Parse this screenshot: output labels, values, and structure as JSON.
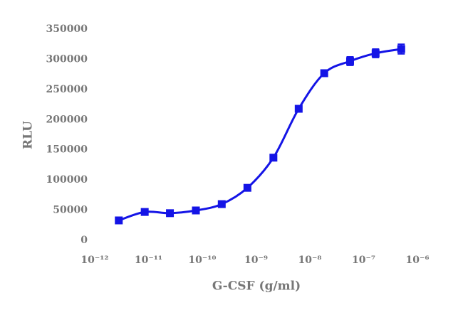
{
  "chart_data": {
    "type": "line",
    "x_label": "G-CSF (g/ml)",
    "y_label": "RLU",
    "log_x": true,
    "xlim": [
      1e-12,
      1e-06
    ],
    "xticks": [
      {
        "value": 1e-12,
        "label": "10⁻¹²"
      },
      {
        "value": 1e-11,
        "label": "10⁻¹¹"
      },
      {
        "value": 1e-10,
        "label": "10⁻¹⁰"
      },
      {
        "value": 1e-09,
        "label": "10⁻⁹"
      },
      {
        "value": 1e-08,
        "label": "10⁻⁸"
      },
      {
        "value": 1e-07,
        "label": "10⁻⁷"
      },
      {
        "value": 1e-06,
        "label": "10⁻⁶"
      }
    ],
    "ylim": [
      0,
      350000
    ],
    "yticks": [
      0,
      50000,
      100000,
      150000,
      200000,
      250000,
      300000,
      350000
    ],
    "x": [
      2.8e-12,
      8.5e-12,
      2.5e-11,
      7.6e-11,
      2.3e-10,
      6.9e-10,
      2.1e-09,
      6.2e-09,
      1.85e-08,
      5.6e-08,
      1.67e-07,
      5e-07
    ],
    "series": [
      {
        "color": "#1414e6",
        "values": [
          33000,
          47000,
          45000,
          49500,
          60000,
          87000,
          137000,
          218000,
          277000,
          297000,
          310000,
          317000
        ],
        "errors": [
          2000,
          2000,
          2000,
          2500,
          2500,
          3000,
          5000,
          4000,
          5000,
          7000,
          7000,
          8000
        ]
      }
    ]
  }
}
